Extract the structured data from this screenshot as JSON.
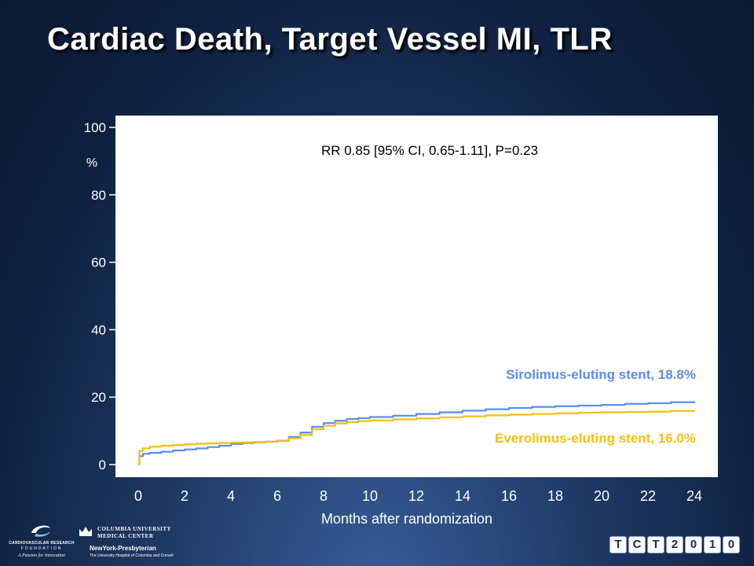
{
  "title": "Cardiac Death, Target Vessel MI, TLR",
  "chart_data": {
    "type": "line",
    "title": "Cardiac Death, Target Vessel MI, TLR",
    "annotation": "RR 0.85 [95% CI, 0.65-1.11], P=0.23",
    "xlabel": "Months after randomization",
    "ylabel": "%",
    "xlim": [
      0,
      24
    ],
    "ylim": [
      0,
      100
    ],
    "x_ticks": [
      0,
      2,
      4,
      6,
      8,
      10,
      12,
      14,
      16,
      18,
      20,
      22,
      24
    ],
    "y_ticks": [
      0,
      20,
      40,
      60,
      80,
      100
    ],
    "grid": false,
    "series": [
      {
        "name": "Sirolimus-eluting stent, 18.8%",
        "color": "#5b8cf0",
        "x": [
          0,
          0.05,
          0.2,
          0.5,
          1,
          1.5,
          2,
          2.5,
          3,
          3.5,
          4,
          4.5,
          5,
          5.5,
          6,
          6.5,
          7,
          7.5,
          8,
          8.5,
          9,
          9.5,
          10,
          11,
          12,
          13,
          14,
          15,
          16,
          17,
          18,
          19,
          20,
          21,
          22,
          23,
          24
        ],
        "y": [
          0,
          2.5,
          3.2,
          3.5,
          3.8,
          4.2,
          4.5,
          4.8,
          5.2,
          5.6,
          6.1,
          6.4,
          6.6,
          6.8,
          7.1,
          8.2,
          9.5,
          11.2,
          12.3,
          13.0,
          13.5,
          13.8,
          14.1,
          14.5,
          15.0,
          15.5,
          16.0,
          16.4,
          16.8,
          17.1,
          17.3,
          17.5,
          17.7,
          18.0,
          18.2,
          18.5,
          18.8
        ]
      },
      {
        "name": "Everolimus-eluting stent, 16.0%",
        "color": "#f2c010",
        "x": [
          0,
          0.05,
          0.2,
          0.5,
          1,
          1.5,
          2,
          2.5,
          3,
          3.5,
          4,
          4.5,
          5,
          5.5,
          6,
          6.5,
          7,
          7.5,
          8,
          8.5,
          9,
          9.5,
          10,
          11,
          12,
          13,
          14,
          15,
          16,
          17,
          18,
          19,
          20,
          21,
          22,
          23,
          24
        ],
        "y": [
          0,
          4.0,
          4.8,
          5.3,
          5.6,
          5.8,
          6.0,
          6.2,
          6.3,
          6.4,
          6.5,
          6.6,
          6.7,
          6.8,
          7.0,
          7.8,
          8.8,
          10.5,
          11.5,
          12.2,
          12.6,
          12.9,
          13.1,
          13.4,
          13.7,
          14.0,
          14.3,
          14.6,
          14.8,
          15.0,
          15.2,
          15.4,
          15.5,
          15.6,
          15.7,
          15.9,
          16.0
        ]
      }
    ]
  }
}
